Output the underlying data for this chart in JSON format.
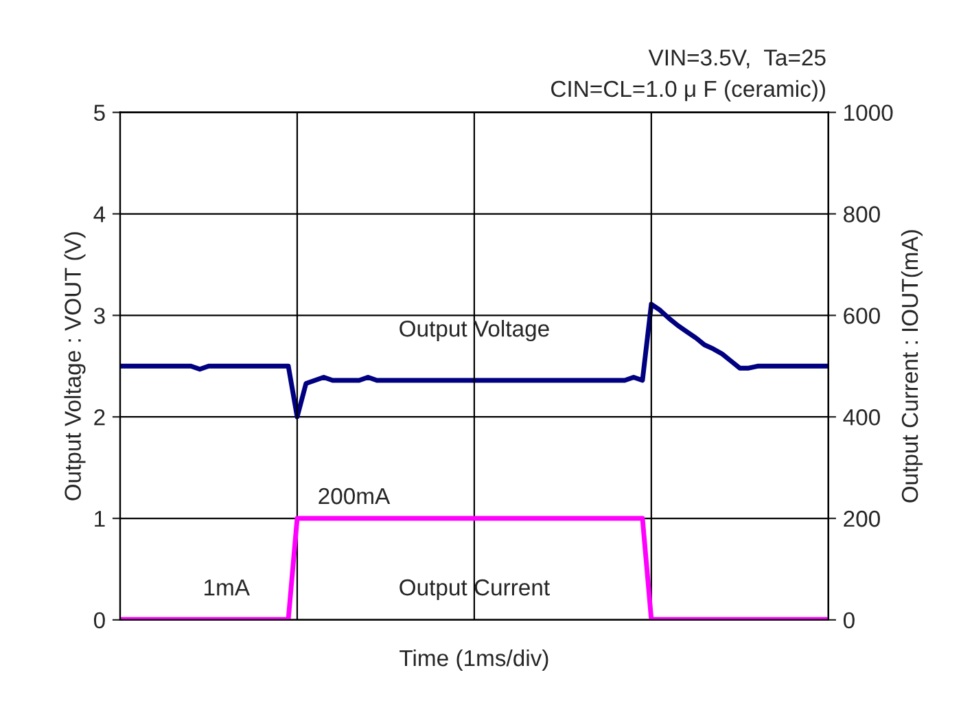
{
  "chart_data": {
    "type": "line",
    "subtitle": "VIN=3.5V,  Ta=25\nCIN=CL=1.0 μ F (ceramic))",
    "xlabel": "Time (1ms/div)",
    "ylabel": "Output Voltage : VOUT (V)",
    "y2label": "Output Current : IOUT(mA)",
    "categories": [
      null,
      null,
      null,
      null,
      null,
      null,
      null,
      null,
      null,
      null,
      null,
      null,
      null,
      null,
      null,
      null,
      null,
      null,
      null,
      null,
      null,
      null,
      null,
      null,
      null,
      null,
      null,
      null,
      null,
      null,
      null,
      null,
      null,
      null,
      null,
      null,
      null,
      null,
      null,
      null,
      null,
      null,
      null,
      null,
      null,
      null,
      null,
      null,
      null,
      null,
      null,
      null,
      null,
      null,
      null,
      null,
      null,
      null,
      null,
      null,
      null,
      null,
      null,
      null,
      null,
      null,
      null,
      null,
      null,
      null,
      null,
      null,
      null,
      null,
      null,
      null,
      null,
      null,
      null,
      null,
      null
    ],
    "ylim": [
      0,
      5
    ],
    "yticks": [
      0,
      1,
      2,
      3,
      4,
      5
    ],
    "y2lim": [
      0,
      1000
    ],
    "y2ticks": [
      0,
      200,
      400,
      600,
      800,
      1000
    ],
    "grid": true,
    "series": [
      {
        "color": "#000080",
        "values": [
          2.5,
          2.5,
          2.5,
          2.5,
          2.5,
          2.5,
          2.5,
          2.5,
          2.5,
          2.47,
          2.5,
          2.5,
          2.5,
          2.5,
          2.5,
          2.5,
          2.5,
          2.5,
          2.5,
          2.5,
          2.0,
          2.33,
          2.36,
          2.39,
          2.36,
          2.36,
          2.36,
          2.36,
          2.39,
          2.36,
          2.36,
          2.36,
          2.36,
          2.36,
          2.36,
          2.36,
          2.36,
          2.36,
          2.36,
          2.36,
          2.36,
          2.36,
          2.36,
          2.36,
          2.36,
          2.36,
          2.36,
          2.36,
          2.36,
          2.36,
          2.36,
          2.36,
          2.36,
          2.36,
          2.36,
          2.36,
          2.36,
          2.36,
          2.39,
          2.36,
          3.11,
          3.05,
          2.97,
          2.9,
          2.84,
          2.78,
          2.71,
          2.67,
          2.62,
          2.55,
          2.48,
          2.48,
          2.5,
          2.5,
          2.5,
          2.5,
          2.5,
          2.5,
          2.5,
          2.5,
          2.5
        ]
      },
      {
        "color": "#ff00ff",
        "axis": "y2",
        "values": [
          1,
          1,
          1,
          1,
          1,
          1,
          1,
          1,
          1,
          1,
          1,
          1,
          1,
          1,
          1,
          1,
          1,
          1,
          1,
          1,
          200,
          200,
          200,
          200,
          200,
          200,
          200,
          200,
          200,
          200,
          200,
          200,
          200,
          200,
          200,
          200,
          200,
          200,
          200,
          200,
          200,
          200,
          200,
          200,
          200,
          200,
          200,
          200,
          200,
          200,
          200,
          200,
          200,
          200,
          200,
          200,
          200,
          200,
          200,
          200,
          1,
          1,
          1,
          1,
          1,
          1,
          1,
          1,
          1,
          1,
          1,
          1,
          1,
          1,
          1,
          1,
          1,
          1,
          1,
          1,
          1
        ]
      }
    ],
    "annotations": [
      "Output Voltage",
      "200mA",
      "1mA",
      "Output Current"
    ]
  }
}
